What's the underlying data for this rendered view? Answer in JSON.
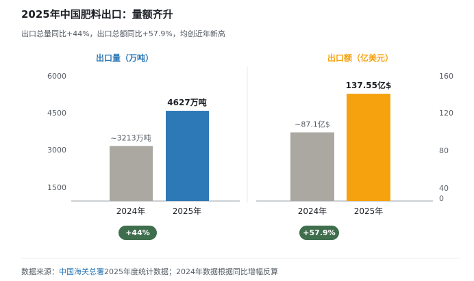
{
  "header": {
    "title": "2025年中国肥料出口：量额齐升",
    "subtitle": "出口总量同比+44%，出口总额同比+57.9%，均创近年新高"
  },
  "colors": {
    "prev_year": "#aba8a2",
    "volume_2025": "#2d78b6",
    "value_2025": "#f5a20e",
    "badge": "#3f6e4d",
    "link": "#2d78b6"
  },
  "badges": {
    "volume": "+44%",
    "value": "+57.9%"
  },
  "footer": {
    "prefix": "数据来源：",
    "source_link": "中国海关总署",
    "suffix": "2025年度统计数据；2024年数据根据同比增幅反算"
  },
  "chart_data": [
    {
      "type": "bar",
      "title": "出口量（万吨）",
      "categories": [
        "2024年",
        "2025年"
      ],
      "values": [
        3213,
        4627
      ],
      "data_labels": [
        "~3213万吨",
        "4627万吨"
      ],
      "ylim": [
        0,
        6000
      ],
      "yticks": [
        "1500",
        "3000",
        "4500",
        "6000"
      ],
      "axis_side": "left",
      "grid": false
    },
    {
      "type": "bar",
      "title": "出口额（亿美元）",
      "categories": [
        "2024年",
        "2025年"
      ],
      "values": [
        87.1,
        137.55
      ],
      "data_labels": [
        "~87.1亿$",
        "137.55亿$"
      ],
      "ylim": [
        0,
        160
      ],
      "yticks": [
        "0",
        "40",
        "80",
        "120",
        "160"
      ],
      "axis_side": "right",
      "grid": false
    }
  ]
}
